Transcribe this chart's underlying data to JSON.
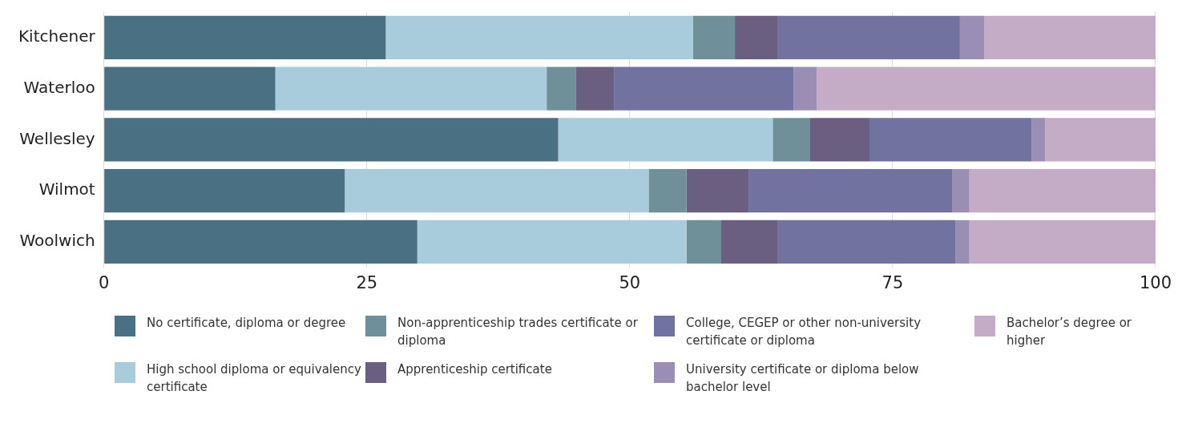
{
  "chart_data": {
    "type": "bar",
    "orientation": "horizontal",
    "stacked": true,
    "categories": [
      "Kitchener",
      "Waterloo",
      "Wellesley",
      "Wilmot",
      "Woolwich"
    ],
    "series": [
      {
        "name": "No certificate, diploma or degree",
        "color": "#4a7083",
        "values": [
          26.8,
          16.3,
          43.2,
          22.9,
          29.8
        ]
      },
      {
        "name": "High school diploma or equivalency certificate",
        "color": "#a9ccdc",
        "values": [
          29.2,
          25.8,
          20.4,
          28.9,
          25.6
        ]
      },
      {
        "name": "Non-apprenticeship trades certificate or diploma",
        "color": "#6f9099",
        "values": [
          4.0,
          2.8,
          3.5,
          3.6,
          3.3
        ]
      },
      {
        "name": "Apprenticeship certificate",
        "color": "#6a5f80",
        "values": [
          4.1,
          3.6,
          5.7,
          5.9,
          5.4
        ]
      },
      {
        "name": "College, CEGEP or other non-university certificate or diploma",
        "color": "#7172a0",
        "values": [
          17.3,
          17.1,
          15.4,
          19.4,
          16.9
        ]
      },
      {
        "name": "University certificate or diploma below bachelor level",
        "color": "#9b8eb5",
        "values": [
          2.3,
          2.2,
          1.3,
          1.6,
          1.3
        ]
      },
      {
        "name": "Bachelor’s degree or higher",
        "color": "#c4abc6",
        "values": [
          16.3,
          32.2,
          10.5,
          17.7,
          17.7
        ]
      }
    ],
    "xlim": [
      0,
      100
    ],
    "xticks": [
      0,
      25,
      50,
      75,
      100
    ],
    "grid": "x",
    "legend": "bottom"
  }
}
